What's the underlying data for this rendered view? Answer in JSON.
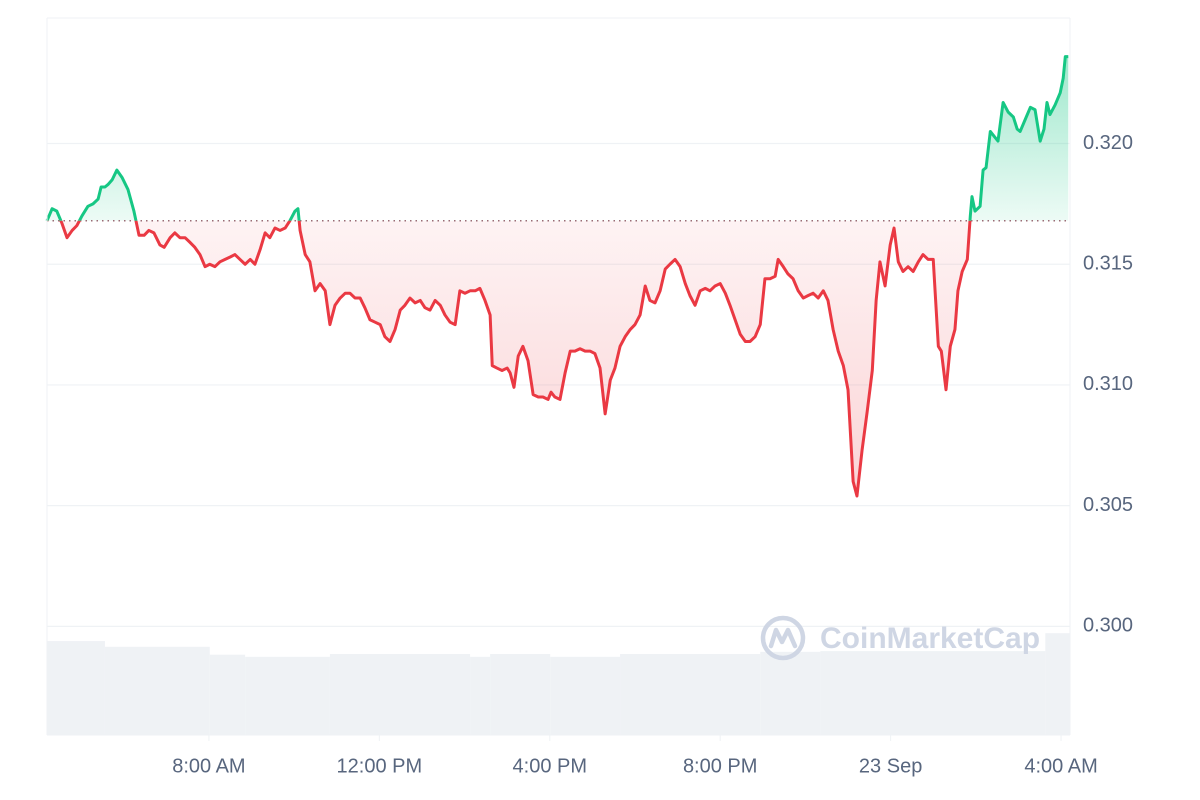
{
  "chart_data": {
    "type": "line",
    "watermark": "CoinMarketCap",
    "x": [
      4.2,
      4.32,
      4.43,
      4.55,
      4.67,
      4.79,
      4.9,
      5.02,
      5.16,
      5.28,
      5.4,
      5.47,
      5.56,
      5.63,
      5.73,
      5.84,
      5.96,
      6.1,
      6.24,
      6.36,
      6.48,
      6.59,
      6.71,
      6.85,
      6.95,
      7.09,
      7.2,
      7.32,
      7.44,
      7.56,
      7.67,
      7.79,
      7.91,
      8.02,
      8.14,
      8.26,
      8.38,
      8.5,
      8.61,
      8.73,
      8.85,
      8.97,
      9.08,
      9.2,
      9.32,
      9.43,
      9.55,
      9.67,
      9.79,
      9.9,
      10.02,
      10.09,
      10.14,
      10.26,
      10.37,
      10.49,
      10.61,
      10.73,
      10.84,
      10.96,
      11.08,
      11.2,
      11.31,
      11.43,
      11.55,
      11.66,
      11.78,
      11.9,
      12.02,
      12.13,
      12.25,
      12.37,
      12.49,
      12.6,
      12.72,
      12.84,
      12.96,
      13.07,
      13.19,
      13.31,
      13.43,
      13.54,
      13.66,
      13.78,
      13.89,
      14.01,
      14.13,
      14.25,
      14.36,
      14.48,
      14.6,
      14.65,
      14.76,
      14.88,
      15.0,
      15.07,
      15.16,
      15.26,
      15.37,
      15.49,
      15.61,
      15.73,
      15.84,
      15.96,
      16.03,
      16.12,
      16.24,
      16.36,
      16.48,
      16.59,
      16.71,
      16.83,
      16.95,
      17.06,
      17.18,
      17.3,
      17.42,
      17.53,
      17.65,
      17.77,
      17.89,
      18.0,
      18.12,
      18.24,
      18.35,
      18.47,
      18.59,
      18.71,
      18.82,
      18.94,
      19.06,
      19.18,
      19.29,
      19.41,
      19.53,
      19.65,
      19.76,
      19.88,
      20.0,
      20.12,
      20.23,
      20.35,
      20.47,
      20.59,
      20.7,
      20.82,
      20.94,
      21.05,
      21.17,
      21.29,
      21.36,
      21.48,
      21.59,
      21.71,
      21.83,
      21.95,
      22.06,
      22.18,
      22.3,
      22.42,
      22.53,
      22.65,
      22.77,
      22.89,
      23.0,
      23.12,
      23.21,
      23.33,
      23.45,
      23.57,
      23.66,
      23.75,
      23.87,
      23.99,
      24.08,
      24.18,
      24.29,
      24.41,
      24.53,
      24.65,
      24.76,
      24.88,
      25.0,
      25.12,
      25.19,
      25.3,
      25.4,
      25.51,
      25.58,
      25.68,
      25.8,
      25.87,
      25.91,
      25.98,
      26.1,
      26.17,
      26.24,
      26.34,
      26.43,
      26.52,
      26.64,
      26.76,
      26.88,
      26.97,
      27.04,
      27.16,
      27.28,
      27.39,
      27.51,
      27.6,
      27.67,
      27.74,
      27.86,
      27.98,
      28.05,
      28.1,
      28.17
    ],
    "values": [
      0.3168,
      0.3173,
      0.3172,
      0.3167,
      0.3161,
      0.3164,
      0.3166,
      0.317,
      0.3174,
      0.3175,
      0.3177,
      0.3182,
      0.3182,
      0.3183,
      0.3185,
      0.3189,
      0.3186,
      0.3181,
      0.3172,
      0.3162,
      0.3162,
      0.3164,
      0.3163,
      0.3158,
      0.3157,
      0.3161,
      0.3163,
      0.3161,
      0.3161,
      0.3159,
      0.3157,
      0.3154,
      0.3149,
      0.315,
      0.3149,
      0.3151,
      0.3152,
      0.3153,
      0.3154,
      0.3152,
      0.315,
      0.3152,
      0.315,
      0.3156,
      0.3163,
      0.3161,
      0.3165,
      0.3164,
      0.3165,
      0.3168,
      0.3172,
      0.3173,
      0.3164,
      0.3154,
      0.3151,
      0.3139,
      0.3142,
      0.3139,
      0.3125,
      0.3133,
      0.3136,
      0.3138,
      0.3138,
      0.3136,
      0.3136,
      0.3132,
      0.3127,
      0.3126,
      0.3125,
      0.312,
      0.3118,
      0.3123,
      0.3131,
      0.3133,
      0.3136,
      0.3134,
      0.3135,
      0.3132,
      0.3131,
      0.3135,
      0.3133,
      0.3129,
      0.3126,
      0.3125,
      0.3139,
      0.3138,
      0.3139,
      0.3139,
      0.314,
      0.3135,
      0.3129,
      0.3108,
      0.3107,
      0.3106,
      0.3107,
      0.3105,
      0.3099,
      0.3112,
      0.3116,
      0.311,
      0.3096,
      0.3095,
      0.3095,
      0.3094,
      0.3097,
      0.3095,
      0.3094,
      0.3105,
      0.3114,
      0.3114,
      0.3115,
      0.3114,
      0.3114,
      0.3113,
      0.3107,
      0.3088,
      0.3102,
      0.3107,
      0.3116,
      0.312,
      0.3123,
      0.3125,
      0.3129,
      0.3141,
      0.3135,
      0.3134,
      0.3139,
      0.3148,
      0.315,
      0.3152,
      0.3149,
      0.3142,
      0.3137,
      0.3133,
      0.3139,
      0.314,
      0.3139,
      0.3141,
      0.3142,
      0.3138,
      0.3133,
      0.3127,
      0.3121,
      0.3118,
      0.3118,
      0.312,
      0.3125,
      0.3144,
      0.3144,
      0.3145,
      0.3152,
      0.3149,
      0.3146,
      0.3144,
      0.3139,
      0.3136,
      0.3137,
      0.3138,
      0.3136,
      0.3139,
      0.3135,
      0.3123,
      0.3114,
      0.3108,
      0.3098,
      0.306,
      0.3054,
      0.3073,
      0.3089,
      0.3106,
      0.3135,
      0.3151,
      0.3141,
      0.3158,
      0.3165,
      0.3151,
      0.3147,
      0.3149,
      0.3147,
      0.3151,
      0.3154,
      0.3152,
      0.3152,
      0.3116,
      0.3114,
      0.3098,
      0.3116,
      0.3123,
      0.3139,
      0.3147,
      0.3152,
      0.317,
      0.3178,
      0.3172,
      0.3174,
      0.3189,
      0.319,
      0.3205,
      0.3203,
      0.3201,
      0.3217,
      0.3213,
      0.3211,
      0.3206,
      0.3205,
      0.321,
      0.3215,
      0.3214,
      0.3201,
      0.3206,
      0.3217,
      0.3212,
      0.3216,
      0.3221,
      0.3227,
      0.3236,
      0.3236
    ],
    "baseline": 0.3168,
    "up_color": "#16c784",
    "down_color": "#ea3943",
    "xlim": [
      4.2,
      28.21
    ],
    "xticks": [
      {
        "value": 8,
        "label": "8:00 AM"
      },
      {
        "value": 12,
        "label": "12:00 PM"
      },
      {
        "value": 16,
        "label": "4:00 PM"
      },
      {
        "value": 20,
        "label": "8:00 PM"
      },
      {
        "value": 24,
        "label": "23 Sep"
      },
      {
        "value": 28,
        "label": "4:00 AM"
      }
    ],
    "ylim": [
      0.2955,
      0.3252
    ],
    "yticks": [
      {
        "value": 0.3,
        "label": "0.300"
      },
      {
        "value": 0.305,
        "label": "0.305"
      },
      {
        "value": 0.31,
        "label": "0.310"
      },
      {
        "value": 0.315,
        "label": "0.315"
      },
      {
        "value": 0.32,
        "label": "0.320"
      }
    ],
    "grid": true,
    "volume": {
      "bins": [
        4.2,
        5.56,
        8.02,
        8.85,
        10.84,
        14.13,
        14.6,
        16.01,
        17.65,
        20.94,
        22.35,
        27.63,
        28.21
      ],
      "values": [
        13.1,
        12.3,
        11.2,
        10.9,
        11.3,
        10.9,
        11.3,
        10.9,
        11.3,
        11.6,
        11.7,
        14.2
      ],
      "color": "#eff2f5",
      "axis": "y2"
    },
    "y2lim": [
      0,
      100
    ]
  }
}
